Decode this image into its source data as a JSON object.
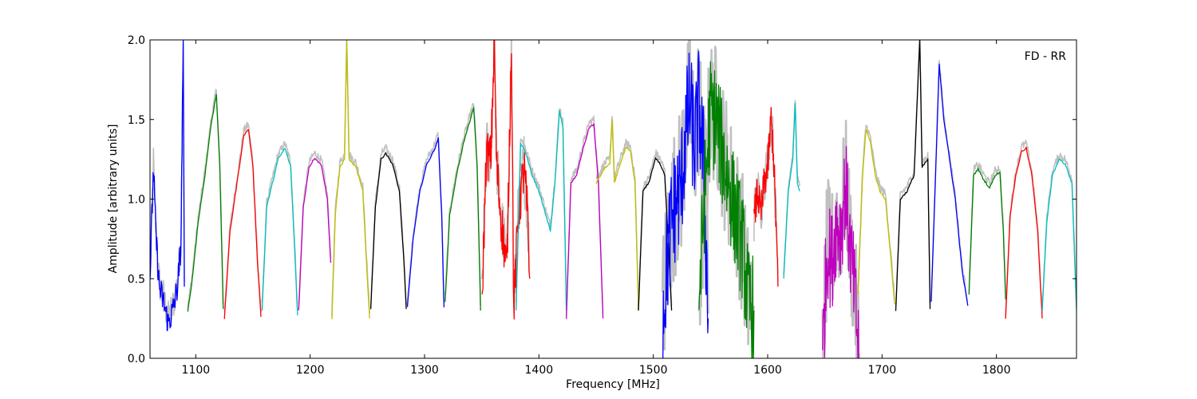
{
  "chart_data": {
    "type": "line",
    "title": "",
    "xlabel": "Frequency [MHz]",
    "ylabel": "Amplitude [arbitrary units]",
    "xlim": [
      1060,
      1870
    ],
    "ylim": [
      0.0,
      2.0
    ],
    "xticks": [
      1100,
      1200,
      1300,
      1400,
      1500,
      1600,
      1700,
      1800
    ],
    "xtick_labels": [
      "1100",
      "1200",
      "1300",
      "1400",
      "1500",
      "1600",
      "1700",
      "1800"
    ],
    "yticks": [
      0.0,
      0.5,
      1.0,
      1.5,
      2.0
    ],
    "ytick_labels": [
      "0.0",
      "0.5",
      "1.0",
      "1.5",
      "2.0"
    ],
    "annotation": "FD - RR",
    "background_color": "#c0c0c0",
    "grid": false,
    "series": [
      {
        "color": "#0000ff",
        "noise": 0.09,
        "points": [
          [
            1060,
            0.5
          ],
          [
            1063,
            1.2
          ],
          [
            1065,
            0.8
          ],
          [
            1068,
            0.45
          ],
          [
            1072,
            0.35
          ],
          [
            1076,
            0.22
          ],
          [
            1080,
            0.3
          ],
          [
            1084,
            0.45
          ],
          [
            1087,
            0.7
          ],
          [
            1089,
            2.0
          ],
          [
            1090,
            0.45
          ]
        ]
      },
      {
        "color": "#008000",
        "noise": 0.0,
        "points": [
          [
            1093,
            0.29
          ],
          [
            1097,
            0.5
          ],
          [
            1102,
            0.85
          ],
          [
            1108,
            1.15
          ],
          [
            1113,
            1.45
          ],
          [
            1118,
            1.66
          ],
          [
            1121,
            1.2
          ],
          [
            1124,
            0.31
          ]
        ]
      },
      {
        "color": "#ff0000",
        "noise": 0.0,
        "points": [
          [
            1125,
            0.25
          ],
          [
            1130,
            0.8
          ],
          [
            1136,
            1.1
          ],
          [
            1142,
            1.4
          ],
          [
            1146,
            1.44
          ],
          [
            1150,
            1.2
          ],
          [
            1154,
            0.6
          ],
          [
            1157,
            0.26
          ]
        ]
      },
      {
        "color": "#00bfbf",
        "noise": 0.0,
        "points": [
          [
            1158,
            0.3
          ],
          [
            1162,
            0.95
          ],
          [
            1167,
            1.1
          ],
          [
            1172,
            1.25
          ],
          [
            1178,
            1.32
          ],
          [
            1183,
            1.2
          ],
          [
            1187,
            0.6
          ],
          [
            1189,
            0.27
          ]
        ]
      },
      {
        "color": "#bf00bf",
        "noise": 0.0,
        "points": [
          [
            1190,
            0.3
          ],
          [
            1194,
            0.95
          ],
          [
            1199,
            1.2
          ],
          [
            1204,
            1.26
          ],
          [
            1210,
            1.21
          ],
          [
            1215,
            1.0
          ],
          [
            1218,
            0.6
          ]
        ]
      },
      {
        "color": "#bfbf00",
        "noise": 0.0,
        "points": [
          [
            1219,
            0.25
          ],
          [
            1222,
            0.9
          ],
          [
            1226,
            1.2
          ],
          [
            1230,
            1.25
          ],
          [
            1232,
            2.0
          ],
          [
            1234,
            1.25
          ],
          [
            1240,
            1.2
          ],
          [
            1246,
            1.05
          ],
          [
            1250,
            0.5
          ],
          [
            1252,
            0.25
          ]
        ]
      },
      {
        "color": "#000000",
        "noise": 0.0,
        "points": [
          [
            1253,
            0.31
          ],
          [
            1257,
            0.95
          ],
          [
            1262,
            1.25
          ],
          [
            1266,
            1.29
          ],
          [
            1272,
            1.22
          ],
          [
            1278,
            1.05
          ],
          [
            1282,
            0.6
          ],
          [
            1284,
            0.31
          ]
        ]
      },
      {
        "color": "#0000ff",
        "noise": 0.0,
        "points": [
          [
            1285,
            0.32
          ],
          [
            1290,
            0.75
          ],
          [
            1296,
            1.05
          ],
          [
            1302,
            1.22
          ],
          [
            1308,
            1.3
          ],
          [
            1312,
            1.38
          ],
          [
            1315,
            0.9
          ],
          [
            1317,
            0.32
          ]
        ]
      },
      {
        "color": "#008000",
        "noise": 0.0,
        "points": [
          [
            1318,
            0.35
          ],
          [
            1322,
            0.9
          ],
          [
            1328,
            1.15
          ],
          [
            1334,
            1.35
          ],
          [
            1340,
            1.5
          ],
          [
            1343,
            1.57
          ],
          [
            1346,
            1.2
          ],
          [
            1349,
            0.3
          ]
        ]
      },
      {
        "color": "#ff0000",
        "noise": 0.16,
        "points": [
          [
            1350,
            0.3
          ],
          [
            1354,
            1.28
          ],
          [
            1358,
            1.25
          ],
          [
            1361,
            2.0
          ],
          [
            1363,
            1.2
          ],
          [
            1368,
            0.8
          ],
          [
            1372,
            0.55
          ],
          [
            1376,
            2.0
          ],
          [
            1378,
            0.3
          ],
          [
            1382,
            0.9
          ],
          [
            1387,
            1.2
          ],
          [
            1390,
            0.9
          ],
          [
            1392,
            0.5
          ]
        ]
      },
      {
        "color": "#00bfbf",
        "noise": 0.0,
        "points": [
          [
            1380,
            0.3
          ],
          [
            1384,
            1.35
          ],
          [
            1388,
            1.3
          ],
          [
            1394,
            1.15
          ],
          [
            1400,
            1.05
          ],
          [
            1406,
            0.9
          ],
          [
            1410,
            0.8
          ],
          [
            1414,
            1.1
          ],
          [
            1418,
            1.55
          ],
          [
            1421,
            1.45
          ],
          [
            1424,
            0.3
          ]
        ]
      },
      {
        "color": "#bf00bf",
        "noise": 0.0,
        "points": [
          [
            1424,
            0.25
          ],
          [
            1428,
            1.1
          ],
          [
            1433,
            1.15
          ],
          [
            1438,
            1.3
          ],
          [
            1444,
            1.45
          ],
          [
            1448,
            1.47
          ],
          [
            1452,
            1.1
          ],
          [
            1456,
            0.25
          ]
        ]
      },
      {
        "color": "#bfbf00",
        "noise": 0.0,
        "points": [
          [
            1450,
            1.1
          ],
          [
            1454,
            1.15
          ],
          [
            1458,
            1.2
          ],
          [
            1462,
            1.22
          ],
          [
            1464,
            1.5
          ],
          [
            1466,
            1.1
          ],
          [
            1470,
            1.2
          ],
          [
            1476,
            1.32
          ],
          [
            1480,
            1.3
          ],
          [
            1484,
            1.1
          ],
          [
            1487,
            0.3
          ]
        ]
      },
      {
        "color": "#000000",
        "noise": 0.0,
        "points": [
          [
            1487,
            0.3
          ],
          [
            1491,
            1.05
          ],
          [
            1496,
            1.1
          ],
          [
            1502,
            1.26
          ],
          [
            1506,
            1.22
          ],
          [
            1510,
            1.15
          ],
          [
            1514,
            0.6
          ],
          [
            1516,
            0.3
          ]
        ]
      },
      {
        "color": "#0000ff",
        "noise": 0.38,
        "points": [
          [
            1508,
            0.25
          ],
          [
            1512,
            0.6
          ],
          [
            1516,
            0.85
          ],
          [
            1520,
            1.0
          ],
          [
            1524,
            1.05
          ],
          [
            1528,
            1.4
          ],
          [
            1532,
            1.6
          ],
          [
            1536,
            1.3
          ],
          [
            1540,
            1.6
          ],
          [
            1544,
            1.2
          ],
          [
            1548,
            0.25
          ]
        ]
      },
      {
        "color": "#008000",
        "noise": 0.35,
        "points": [
          [
            1540,
            0.35
          ],
          [
            1545,
            1.05
          ],
          [
            1550,
            1.55
          ],
          [
            1555,
            1.5
          ],
          [
            1560,
            1.3
          ],
          [
            1566,
            1.1
          ],
          [
            1572,
            0.9
          ],
          [
            1578,
            0.7
          ],
          [
            1583,
            0.35
          ],
          [
            1588,
            0.3
          ]
        ]
      },
      {
        "color": "#ff0000",
        "noise": 0.12,
        "points": [
          [
            1588,
            0.85
          ],
          [
            1591,
            1.05
          ],
          [
            1594,
            0.9
          ],
          [
            1597,
            1.1
          ],
          [
            1600,
            1.2
          ],
          [
            1603,
            1.5
          ],
          [
            1605,
            1.3
          ],
          [
            1607,
            0.9
          ],
          [
            1609,
            0.45
          ]
        ]
      },
      {
        "color": "#00bfbf",
        "noise": 0.0,
        "points": [
          [
            1614,
            0.5
          ],
          [
            1618,
            1.05
          ],
          [
            1622,
            1.25
          ],
          [
            1624,
            1.6
          ],
          [
            1626,
            1.1
          ],
          [
            1628,
            1.05
          ]
        ]
      },
      {
        "color": "#bf00bf",
        "noise": 0.32,
        "points": [
          [
            1648,
            0.0
          ],
          [
            1652,
            0.7
          ],
          [
            1656,
            0.6
          ],
          [
            1660,
            0.85
          ],
          [
            1664,
            0.8
          ],
          [
            1668,
            1.1
          ],
          [
            1672,
            0.7
          ],
          [
            1676,
            0.4
          ],
          [
            1680,
            0.0
          ]
        ]
      },
      {
        "color": "#bfbf00",
        "noise": 0.0,
        "points": [
          [
            1679,
            0.4
          ],
          [
            1683,
            1.15
          ],
          [
            1686,
            1.44
          ],
          [
            1690,
            1.35
          ],
          [
            1694,
            1.15
          ],
          [
            1698,
            1.05
          ],
          [
            1703,
            1.0
          ],
          [
            1708,
            0.6
          ],
          [
            1711,
            0.34
          ]
        ]
      },
      {
        "color": "#000000",
        "noise": 0.0,
        "points": [
          [
            1712,
            0.3
          ],
          [
            1716,
            1.0
          ],
          [
            1722,
            1.05
          ],
          [
            1728,
            1.15
          ],
          [
            1733,
            2.0
          ],
          [
            1735,
            1.2
          ],
          [
            1740,
            1.25
          ],
          [
            1742,
            0.31
          ]
        ]
      },
      {
        "color": "#0000ff",
        "noise": 0.0,
        "points": [
          [
            1743,
            0.35
          ],
          [
            1747,
            1.2
          ],
          [
            1750,
            1.85
          ],
          [
            1754,
            1.5
          ],
          [
            1758,
            1.3
          ],
          [
            1764,
            1.0
          ],
          [
            1770,
            0.55
          ],
          [
            1775,
            0.33
          ]
        ]
      },
      {
        "color": "#008000",
        "noise": 0.0,
        "points": [
          [
            1776,
            0.4
          ],
          [
            1780,
            1.15
          ],
          [
            1784,
            1.19
          ],
          [
            1789,
            1.12
          ],
          [
            1794,
            1.07
          ],
          [
            1799,
            1.15
          ],
          [
            1803,
            1.17
          ],
          [
            1806,
            0.8
          ],
          [
            1808,
            0.37
          ]
        ]
      },
      {
        "color": "#ff0000",
        "noise": 0.0,
        "points": [
          [
            1808,
            0.25
          ],
          [
            1812,
            0.9
          ],
          [
            1817,
            1.15
          ],
          [
            1822,
            1.3
          ],
          [
            1826,
            1.32
          ],
          [
            1831,
            1.15
          ],
          [
            1836,
            0.8
          ],
          [
            1840,
            0.25
          ]
        ]
      },
      {
        "color": "#00bfbf",
        "noise": 0.0,
        "points": [
          [
            1840,
            0.3
          ],
          [
            1844,
            0.85
          ],
          [
            1849,
            1.15
          ],
          [
            1855,
            1.25
          ],
          [
            1860,
            1.22
          ],
          [
            1866,
            1.1
          ],
          [
            1870,
            0.3
          ]
        ]
      }
    ]
  }
}
